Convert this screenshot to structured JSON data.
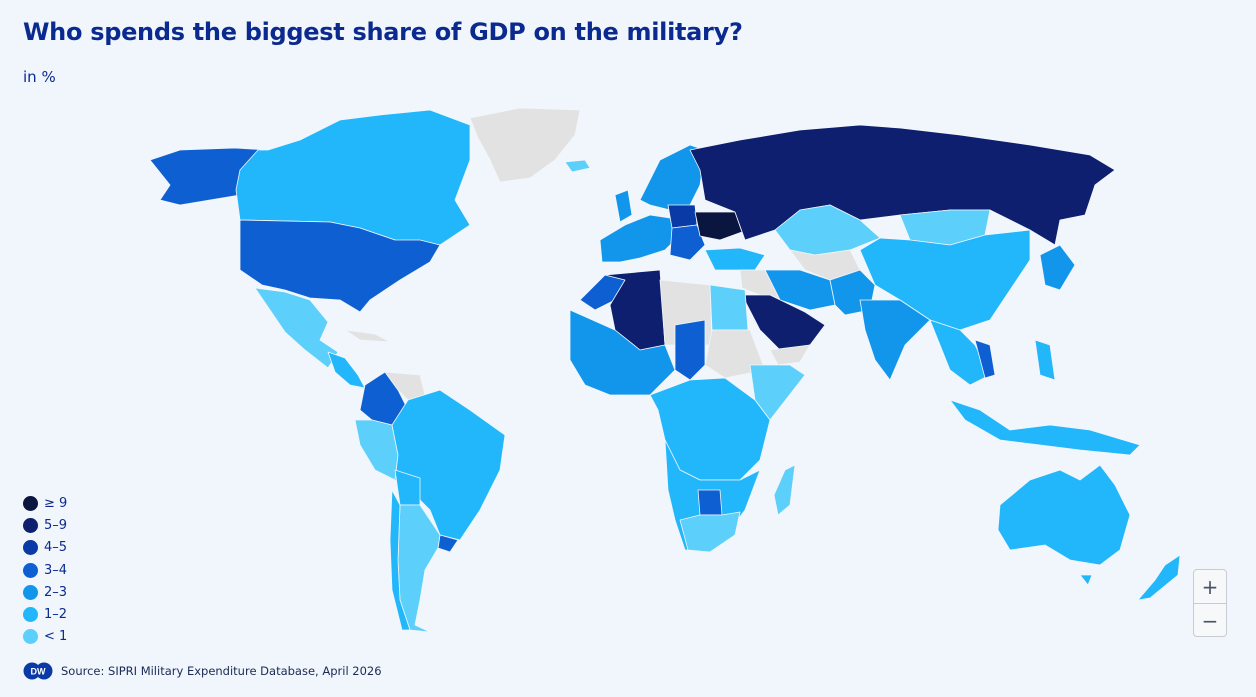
{
  "title": "Who spends the biggest share of GDP on the military?",
  "subtitle": "in %",
  "legend": [
    {
      "label": "≥ 9",
      "color": "#0b1640"
    },
    {
      "label": "5–9",
      "color": "#0d1f6e"
    },
    {
      "label": "4–5",
      "color": "#0a3aa6"
    },
    {
      "label": "3–4",
      "color": "#0e60d2"
    },
    {
      "label": "2–3",
      "color": "#1296ec"
    },
    {
      "label": "1–2",
      "color": "#22b6fb"
    },
    {
      "label": "< 1",
      "color": "#5ccffa"
    }
  ],
  "no_data_color": "#e2e2e2",
  "source": "Source: SIPRI Military Expenditure Database, April 2026",
  "logo": "DW",
  "zoom": {
    "in_label": "+",
    "out_label": "−"
  }
}
